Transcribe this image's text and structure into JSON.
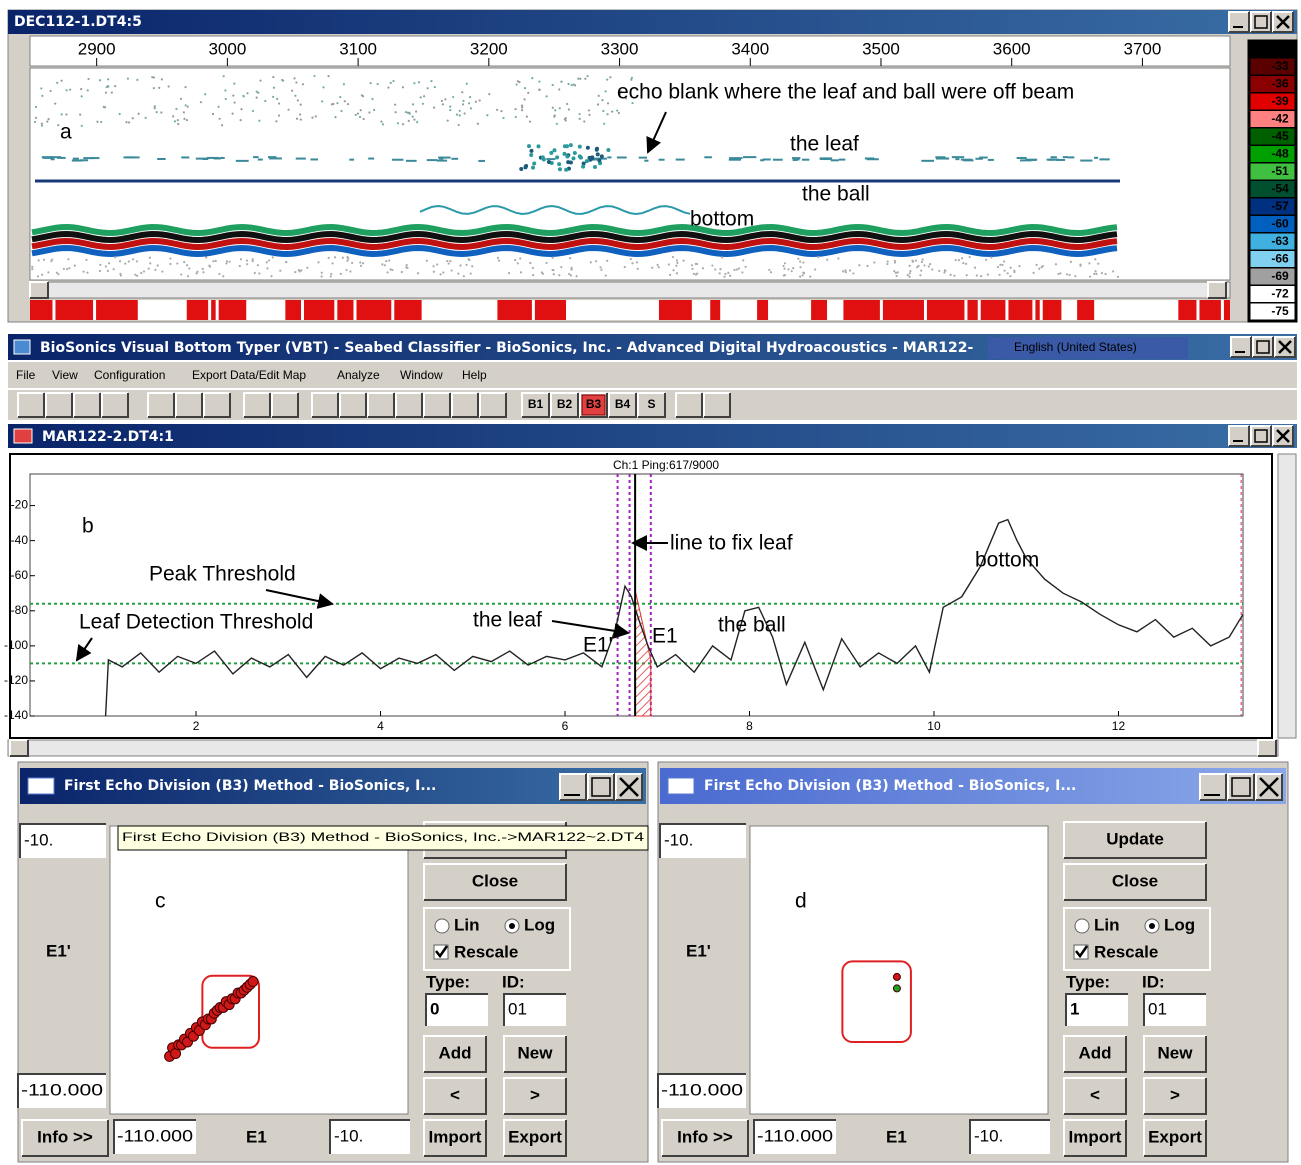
{
  "window_a": {
    "title": "DEC112-1.DT4:5",
    "ruler": {
      "xlim": [
        2849,
        3767
      ],
      "ticks": [
        2900,
        3000,
        3100,
        3200,
        3300,
        3400,
        3500,
        3600,
        3700
      ]
    },
    "label": "a",
    "annotations": {
      "echo_blank": "echo blank where the leaf and ball were off beam",
      "leaf": "the leaf",
      "ball": "the ball",
      "bottom": "bottom"
    },
    "color_scale": {
      "values": [
        -33,
        -36,
        -39,
        -42,
        -45,
        -48,
        -51,
        -54,
        -57,
        -60,
        -63,
        -66,
        -69,
        -72,
        -75
      ],
      "colors": [
        "#5a0000",
        "#8b0000",
        "#e00000",
        "#ff8080",
        "#006000",
        "#00a000",
        "#40c040",
        "#005030",
        "#003080",
        "#0060c0",
        "#40b0e0",
        "#80d0f0",
        "#a0a0a0",
        "#ffffff",
        "#ffffff"
      ]
    }
  },
  "main_window": {
    "title": "BioSonics Visual Bottom Typer (VBT) - Seabed Classifier - BioSonics, Inc. - Advanced Digital Hydroacoustics - MAR122-",
    "language": "English (United States)",
    "menu": [
      "File",
      "View",
      "Configuration",
      "Export Data/Edit Map",
      "Analyze",
      "Window",
      "Help"
    ],
    "toolbar": [
      "B1",
      "B2",
      "B3",
      "B4",
      "S"
    ]
  },
  "window_b": {
    "title": "MAR122-2.DT4:1",
    "header": "Ch:1 Ping:617/9000",
    "label": "b",
    "xlim": [
      0.2,
      13.35
    ],
    "ylim": [
      -140,
      -2
    ],
    "xticks": [
      2,
      4,
      6,
      8,
      10,
      12
    ],
    "yticks": [
      -20,
      -40,
      -60,
      -80,
      -100,
      -120,
      -140
    ],
    "peak_threshold": -76,
    "leaf_threshold": -110,
    "ping_lines": [
      6.57,
      6.7,
      6.93
    ],
    "fix_line": 6.76,
    "end_line": 13.33,
    "x": [
      1.02,
      1.05,
      1.2,
      1.4,
      1.6,
      1.8,
      2.0,
      2.2,
      2.4,
      2.6,
      2.8,
      3.0,
      3.2,
      3.4,
      3.6,
      3.8,
      4.0,
      4.2,
      4.4,
      4.6,
      4.8,
      5.0,
      5.2,
      5.4,
      5.6,
      5.8,
      6.0,
      6.2,
      6.4,
      6.55,
      6.65,
      6.72,
      6.8,
      6.9,
      7.0,
      7.2,
      7.4,
      7.6,
      7.8,
      7.95,
      8.1,
      8.25,
      8.4,
      8.6,
      8.8,
      9.0,
      9.2,
      9.4,
      9.6,
      9.8,
      9.95,
      10.1,
      10.3,
      10.5,
      10.7,
      10.8,
      10.9,
      11.0,
      11.2,
      11.4,
      11.6,
      11.8,
      12.0,
      12.2,
      12.4,
      12.6,
      12.8,
      13.0,
      13.2,
      13.35
    ],
    "y": [
      -140,
      -108,
      -112,
      -104,
      -115,
      -106,
      -110,
      -103,
      -116,
      -107,
      -112,
      -105,
      -118,
      -106,
      -111,
      -104,
      -113,
      -107,
      -110,
      -105,
      -114,
      -106,
      -109,
      -103,
      -111,
      -106,
      -108,
      -104,
      -112,
      -90,
      -66,
      -72,
      -85,
      -100,
      -112,
      -105,
      -115,
      -100,
      -108,
      -80,
      -78,
      -95,
      -122,
      -98,
      -125,
      -96,
      -112,
      -104,
      -110,
      -100,
      -115,
      -78,
      -72,
      -55,
      -30,
      -28,
      -40,
      -50,
      -62,
      -70,
      -75,
      -82,
      -88,
      -92,
      -85,
      -95,
      -90,
      -100,
      -95,
      -82
    ],
    "annotations": {
      "peak": "Peak Threshold",
      "leaf_detect": "Leaf Detection Threshold",
      "fix": "line to fix leaf",
      "leaf": "the leaf",
      "e1p": "E1'",
      "e1": "E1",
      "ball": "the ball",
      "bottom": "bottom"
    }
  },
  "dialogs": [
    {
      "title": "First Echo Division (B3) Method - BioSonics, I...",
      "active": true,
      "label": "c",
      "e1p_max": {
        "value": -10,
        "label": "-10."
      },
      "e1p_min": {
        "value": -110,
        "label": "-110.000"
      },
      "e1_min": {
        "value": -110,
        "label": "-110.000"
      },
      "e1_max": {
        "value": -10,
        "label": "-10."
      },
      "y_label": "E1'",
      "x_label": "E1",
      "info": "Info >>",
      "buttons": {
        "update": "Update",
        "close": "Close",
        "add": "Add",
        "new": "New",
        "prev": "<",
        "next": ">",
        "import": "Import",
        "export": "Export"
      },
      "lin": "Lin",
      "log": "Log",
      "rescale": "Rescale",
      "type_label": "Type:",
      "id_label": "ID:",
      "type": 0,
      "id": "01",
      "box": {
        "e1": [
          -79,
          -60
        ],
        "e1p": [
          -87,
          -62
        ]
      },
      "points": {
        "e1": [
          -90,
          -89,
          -88,
          -87,
          -86,
          -85,
          -84,
          -83,
          -82,
          -81,
          -80,
          -79,
          -78,
          -77,
          -76,
          -75,
          -74,
          -73,
          -72,
          -71,
          -70,
          -69,
          -68,
          -67,
          -66,
          -65,
          -64,
          -63,
          -62
        ],
        "e1p": [
          -90,
          -87,
          -89,
          -86,
          -86,
          -84,
          -85,
          -82,
          -83,
          -80,
          -81,
          -78,
          -79,
          -77,
          -77,
          -75,
          -74,
          -73,
          -73,
          -71,
          -72,
          -70,
          -70,
          -68,
          -68,
          -67,
          -66,
          -65,
          -64
        ],
        "colors": [
          "#d01818"
        ]
      },
      "tooltip": "First Echo Division (B3) Method - BioSonics, Inc.->MAR122~2.DT4"
    },
    {
      "title": "First Echo Division (B3) Method - BioSonics, I...",
      "active": false,
      "label": "d",
      "e1p_max": {
        "value": -10,
        "label": "-10."
      },
      "e1p_min": {
        "value": -110,
        "label": "-110.000"
      },
      "e1_min": {
        "value": -110,
        "label": "-110.000"
      },
      "e1_max": {
        "value": -10,
        "label": "-10."
      },
      "y_label": "E1'",
      "x_label": "E1",
      "info": "Info >>",
      "buttons": {
        "update": "Update",
        "close": "Close",
        "add": "Add",
        "new": "New",
        "prev": "<",
        "next": ">",
        "import": "Import",
        "export": "Export"
      },
      "lin": "Lin",
      "log": "Log",
      "rescale": "Rescale",
      "type_label": "Type:",
      "id_label": "ID:",
      "type": 1,
      "id": "01",
      "box": {
        "e1": [
          -79,
          -56
        ],
        "e1p": [
          -85,
          -57
        ]
      },
      "points": {
        "e1": [
          -60.7,
          -60.7
        ],
        "e1p": [
          -62.4,
          -66.4
        ],
        "colors": [
          "#d01818",
          "#20a020"
        ]
      }
    }
  ]
}
